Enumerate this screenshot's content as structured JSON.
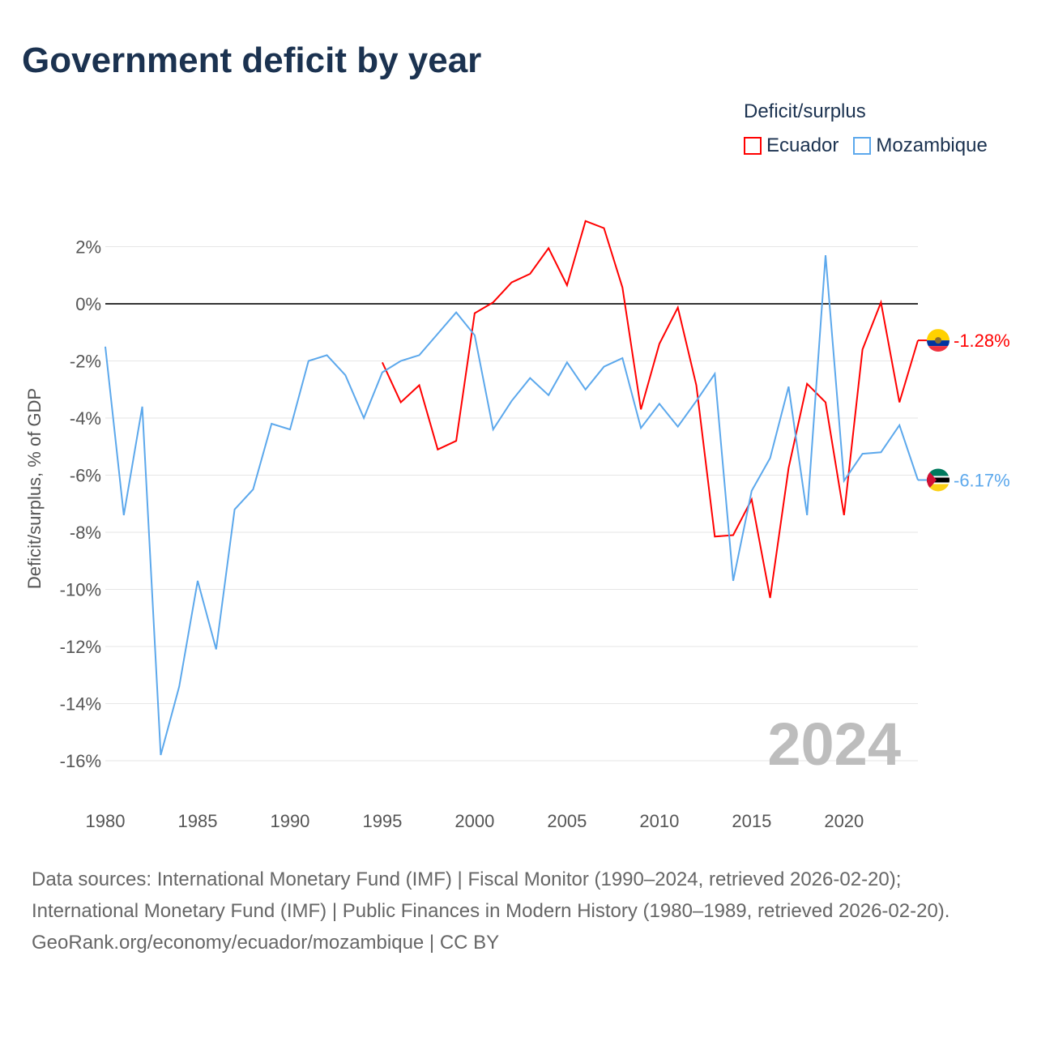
{
  "title": "Government deficit by year",
  "legend": {
    "title": "Deficit/surplus",
    "items": [
      {
        "name": "Ecuador",
        "color": "#ff0000"
      },
      {
        "name": "Mozambique",
        "color": "#5ca8ec"
      }
    ]
  },
  "chart_data": {
    "type": "line",
    "title": "Government deficit by year",
    "xlabel": "",
    "ylabel": "Deficit/surplus, % of GDP",
    "xlim": [
      1980,
      2024
    ],
    "ylim": [
      -16,
      2
    ],
    "xticks": [
      1980,
      1985,
      1990,
      1995,
      2000,
      2005,
      2010,
      2015,
      2020
    ],
    "xtick_labels": [
      "1980",
      "1985",
      "1990",
      "1995",
      "2000",
      "2005",
      "2010",
      "2015",
      "2020"
    ],
    "yticks": [
      2,
      0,
      -2,
      -4,
      -6,
      -8,
      -10,
      -12,
      -14,
      -16
    ],
    "ytick_labels": [
      "2%",
      "0%",
      "-2%",
      "-4%",
      "-6%",
      "-8%",
      "-10%",
      "-12%",
      "-14%",
      "-16%"
    ],
    "grid": true,
    "watermark_year": "2024",
    "series": [
      {
        "name": "Ecuador",
        "color": "#ff0000",
        "end_label": "-1.28%",
        "x": [
          1995,
          1996,
          1997,
          1998,
          1999,
          2000,
          2001,
          2002,
          2003,
          2004,
          2005,
          2006,
          2007,
          2008,
          2009,
          2010,
          2011,
          2012,
          2013,
          2014,
          2015,
          2016,
          2017,
          2018,
          2019,
          2020,
          2021,
          2022,
          2023,
          2024
        ],
        "values": [
          -2.05,
          -3.45,
          -2.85,
          -5.1,
          -4.8,
          -0.33,
          0.05,
          0.75,
          1.05,
          1.95,
          0.65,
          2.9,
          2.65,
          0.57,
          -3.7,
          -1.4,
          -0.13,
          -2.85,
          -8.15,
          -8.1,
          -6.85,
          -10.3,
          -5.75,
          -2.8,
          -3.45,
          -7.4,
          -1.6,
          0.05,
          -3.45,
          -1.28
        ]
      },
      {
        "name": "Mozambique",
        "color": "#5ca8ec",
        "end_label": "-6.17%",
        "x": [
          1980,
          1981,
          1982,
          1983,
          1984,
          1985,
          1986,
          1987,
          1988,
          1989,
          1990,
          1991,
          1992,
          1993,
          1994,
          1995,
          1996,
          1997,
          1998,
          1999,
          2000,
          2001,
          2002,
          2003,
          2004,
          2005,
          2006,
          2007,
          2008,
          2009,
          2010,
          2011,
          2012,
          2013,
          2014,
          2015,
          2016,
          2017,
          2018,
          2019,
          2020,
          2021,
          2022,
          2023,
          2024
        ],
        "values": [
          -1.5,
          -7.4,
          -3.6,
          -15.8,
          -13.4,
          -9.7,
          -12.1,
          -7.2,
          -6.5,
          -4.2,
          -4.4,
          -2.0,
          -1.8,
          -2.5,
          -4.0,
          -2.4,
          -2.0,
          -1.8,
          -1.05,
          -0.3,
          -1.1,
          -4.4,
          -3.4,
          -2.6,
          -3.2,
          -2.05,
          -3.0,
          -2.2,
          -1.9,
          -4.35,
          -3.5,
          -4.3,
          -3.4,
          -2.45,
          -9.7,
          -6.55,
          -5.4,
          -2.9,
          -7.4,
          1.7,
          -6.2,
          -5.25,
          -5.2,
          -4.25,
          -6.17
        ]
      }
    ]
  },
  "footer": {
    "sources": "Data sources: International Monetary Fund (IMF) | Fiscal Monitor (1990–2024, retrieved 2026-02-20); International Monetary Fund (IMF) | Public Finances in Modern History (1980–1989, retrieved 2026-02-20).",
    "credit": "GeoRank.org/economy/ecuador/mozambique | CC BY"
  }
}
